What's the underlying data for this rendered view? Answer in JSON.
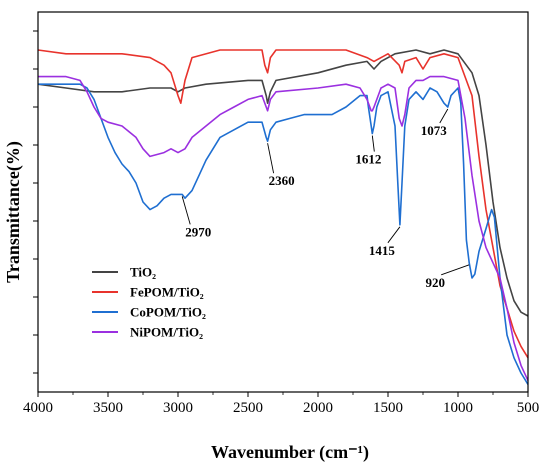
{
  "chart_data": {
    "type": "line",
    "title": "",
    "xlabel": "Wavenumber (cm⁻¹)",
    "ylabel": "Transmittance(%)",
    "xlim": [
      4000,
      500
    ],
    "ylim": [
      0,
      100
    ],
    "x_ticks": [
      "4000",
      "3500",
      "3000",
      "2500",
      "2000",
      "1500",
      "1000",
      "500"
    ],
    "y_tick_labels_shown": false,
    "legend_position": "lower-left",
    "series": [
      {
        "name": "TiO₂",
        "color": "#444444",
        "points": [
          [
            4000,
            81
          ],
          [
            3800,
            80
          ],
          [
            3600,
            79
          ],
          [
            3400,
            79
          ],
          [
            3200,
            80
          ],
          [
            3050,
            80
          ],
          [
            3000,
            79
          ],
          [
            2950,
            80
          ],
          [
            2800,
            81
          ],
          [
            2500,
            82
          ],
          [
            2400,
            82
          ],
          [
            2370,
            78
          ],
          [
            2360,
            76
          ],
          [
            2340,
            79
          ],
          [
            2300,
            82
          ],
          [
            2000,
            84
          ],
          [
            1800,
            86
          ],
          [
            1650,
            87
          ],
          [
            1600,
            85
          ],
          [
            1550,
            87
          ],
          [
            1450,
            89
          ],
          [
            1300,
            90
          ],
          [
            1200,
            89
          ],
          [
            1100,
            90
          ],
          [
            1000,
            89
          ],
          [
            900,
            84
          ],
          [
            850,
            78
          ],
          [
            800,
            65
          ],
          [
            750,
            50
          ],
          [
            700,
            38
          ],
          [
            650,
            30
          ],
          [
            600,
            24
          ],
          [
            550,
            21
          ],
          [
            500,
            20
          ]
        ]
      },
      {
        "name": "FePOM/TiO₂",
        "color": "#e8332c",
        "points": [
          [
            4000,
            90
          ],
          [
            3800,
            89
          ],
          [
            3600,
            89
          ],
          [
            3400,
            89
          ],
          [
            3200,
            88
          ],
          [
            3100,
            86
          ],
          [
            3050,
            84
          ],
          [
            3000,
            78
          ],
          [
            2980,
            76
          ],
          [
            2950,
            82
          ],
          [
            2900,
            88
          ],
          [
            2700,
            90
          ],
          [
            2500,
            90
          ],
          [
            2400,
            90
          ],
          [
            2380,
            86
          ],
          [
            2360,
            84
          ],
          [
            2340,
            88
          ],
          [
            2300,
            90
          ],
          [
            2000,
            90
          ],
          [
            1800,
            90
          ],
          [
            1650,
            88
          ],
          [
            1600,
            87
          ],
          [
            1500,
            89
          ],
          [
            1420,
            86
          ],
          [
            1400,
            84
          ],
          [
            1380,
            87
          ],
          [
            1300,
            88
          ],
          [
            1250,
            85
          ],
          [
            1200,
            88
          ],
          [
            1100,
            89
          ],
          [
            1000,
            88
          ],
          [
            900,
            78
          ],
          [
            850,
            62
          ],
          [
            800,
            48
          ],
          [
            750,
            38
          ],
          [
            700,
            28
          ],
          [
            650,
            22
          ],
          [
            600,
            16
          ],
          [
            550,
            12
          ],
          [
            500,
            9
          ]
        ]
      },
      {
        "name": "CoPOM/TiO₂",
        "color": "#1f6fd1",
        "points": [
          [
            4000,
            81
          ],
          [
            3800,
            81
          ],
          [
            3700,
            81
          ],
          [
            3650,
            80
          ],
          [
            3600,
            77
          ],
          [
            3550,
            72
          ],
          [
            3500,
            67
          ],
          [
            3450,
            63
          ],
          [
            3400,
            60
          ],
          [
            3350,
            58
          ],
          [
            3300,
            55
          ],
          [
            3250,
            50
          ],
          [
            3200,
            48
          ],
          [
            3150,
            49
          ],
          [
            3100,
            51
          ],
          [
            3050,
            52
          ],
          [
            3000,
            52
          ],
          [
            2970,
            52
          ],
          [
            2950,
            51
          ],
          [
            2900,
            53
          ],
          [
            2850,
            57
          ],
          [
            2800,
            61
          ],
          [
            2750,
            64
          ],
          [
            2700,
            67
          ],
          [
            2600,
            69
          ],
          [
            2500,
            71
          ],
          [
            2450,
            71
          ],
          [
            2400,
            71
          ],
          [
            2370,
            67
          ],
          [
            2360,
            66
          ],
          [
            2340,
            69
          ],
          [
            2300,
            71
          ],
          [
            2200,
            72
          ],
          [
            2100,
            73
          ],
          [
            2000,
            73
          ],
          [
            1900,
            73
          ],
          [
            1800,
            75
          ],
          [
            1700,
            78
          ],
          [
            1650,
            78
          ],
          [
            1640,
            75
          ],
          [
            1620,
            70
          ],
          [
            1612,
            68
          ],
          [
            1600,
            70
          ],
          [
            1580,
            75
          ],
          [
            1550,
            78
          ],
          [
            1500,
            79
          ],
          [
            1450,
            70
          ],
          [
            1430,
            55
          ],
          [
            1415,
            44
          ],
          [
            1400,
            55
          ],
          [
            1380,
            70
          ],
          [
            1350,
            77
          ],
          [
            1300,
            79
          ],
          [
            1250,
            77
          ],
          [
            1200,
            80
          ],
          [
            1150,
            79
          ],
          [
            1100,
            76
          ],
          [
            1073,
            75
          ],
          [
            1050,
            78
          ],
          [
            1000,
            80
          ],
          [
            980,
            76
          ],
          [
            960,
            60
          ],
          [
            940,
            40
          ],
          [
            920,
            34
          ],
          [
            900,
            30
          ],
          [
            880,
            31
          ],
          [
            850,
            37
          ],
          [
            800,
            43
          ],
          [
            760,
            48
          ],
          [
            740,
            46
          ],
          [
            700,
            30
          ],
          [
            650,
            15
          ],
          [
            600,
            9
          ],
          [
            550,
            5
          ],
          [
            500,
            2
          ]
        ]
      },
      {
        "name": "NiPOM/TiO₂",
        "color": "#9b30e0",
        "points": [
          [
            4000,
            83
          ],
          [
            3800,
            83
          ],
          [
            3700,
            82
          ],
          [
            3650,
            79
          ],
          [
            3600,
            75
          ],
          [
            3550,
            72
          ],
          [
            3500,
            71
          ],
          [
            3400,
            70
          ],
          [
            3300,
            67
          ],
          [
            3250,
            64
          ],
          [
            3200,
            62
          ],
          [
            3100,
            63
          ],
          [
            3050,
            64
          ],
          [
            3000,
            63
          ],
          [
            2950,
            64
          ],
          [
            2900,
            67
          ],
          [
            2800,
            70
          ],
          [
            2700,
            73
          ],
          [
            2600,
            75
          ],
          [
            2500,
            77
          ],
          [
            2400,
            78
          ],
          [
            2370,
            75
          ],
          [
            2360,
            74
          ],
          [
            2340,
            77
          ],
          [
            2300,
            79
          ],
          [
            2000,
            80
          ],
          [
            1800,
            81
          ],
          [
            1700,
            80
          ],
          [
            1650,
            77
          ],
          [
            1620,
            74
          ],
          [
            1612,
            74
          ],
          [
            1600,
            75
          ],
          [
            1550,
            80
          ],
          [
            1500,
            81
          ],
          [
            1450,
            80
          ],
          [
            1420,
            72
          ],
          [
            1400,
            70
          ],
          [
            1380,
            73
          ],
          [
            1350,
            80
          ],
          [
            1300,
            82
          ],
          [
            1250,
            82
          ],
          [
            1200,
            83
          ],
          [
            1100,
            83
          ],
          [
            1000,
            82
          ],
          [
            950,
            72
          ],
          [
            900,
            57
          ],
          [
            850,
            45
          ],
          [
            800,
            38
          ],
          [
            750,
            34
          ],
          [
            700,
            30
          ],
          [
            650,
            22
          ],
          [
            600,
            13
          ],
          [
            550,
            7
          ],
          [
            500,
            3
          ]
        ]
      }
    ],
    "annotations": [
      {
        "text": "2970",
        "x": 2970,
        "y": 52
      },
      {
        "text": "2360",
        "x": 2360,
        "y": 66
      },
      {
        "text": "1612",
        "x": 1612,
        "y": 68
      },
      {
        "text": "1415",
        "x": 1415,
        "y": 44
      },
      {
        "text": "1073",
        "x": 1073,
        "y": 75
      },
      {
        "text": "920",
        "x": 920,
        "y": 34
      }
    ]
  }
}
